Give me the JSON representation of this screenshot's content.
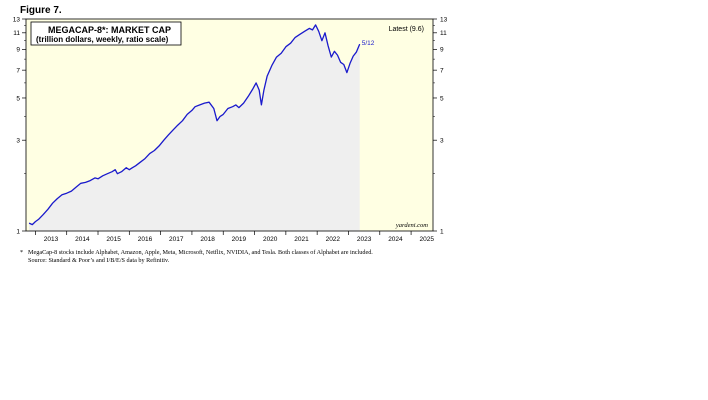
{
  "figure_label": "Figure 7.",
  "chart_data": {
    "type": "line",
    "title": "MEGACAP-8*: MARKET CAP",
    "subtitle": "(trillion dollars, weekly, ratio scale)",
    "latest_label": "Latest (9.6)",
    "end_label": "5/12",
    "source_label": "yardeni.com",
    "y_scale": "log",
    "ylim": [
      1,
      13
    ],
    "y_ticks": [
      1,
      3,
      5,
      7,
      9,
      11,
      13
    ],
    "y_tick_labels": [
      "1",
      "3",
      "5",
      "7",
      "9",
      "11",
      "13"
    ],
    "xlim": [
      2012.7,
      2025.7
    ],
    "x_ticks": [
      2013,
      2014,
      2015,
      2016,
      2017,
      2018,
      2019,
      2020,
      2021,
      2022,
      2023,
      2024,
      2025
    ],
    "x_tick_labels": [
      "2013",
      "2014",
      "2015",
      "2016",
      "2017",
      "2018",
      "2019",
      "2020",
      "2021",
      "2022",
      "2023",
      "2024",
      "2025"
    ],
    "grid": false,
    "colors": {
      "line": "#1a1acc",
      "chart_bg": "#ffffe3",
      "fill": "#efefef"
    },
    "series": [
      {
        "x": [
          2012.8,
          2012.9,
          2013.0,
          2013.1,
          2013.25,
          2013.4,
          2013.55,
          2013.7,
          2013.85,
          2014.0,
          2014.15,
          2014.3,
          2014.45,
          2014.6,
          2014.75,
          2014.9,
          2015.0,
          2015.15,
          2015.3,
          2015.45,
          2015.55,
          2015.62,
          2015.75,
          2015.9,
          2016.0,
          2016.1,
          2016.2,
          2016.35,
          2016.5,
          2016.65,
          2016.8,
          2016.95,
          2017.1,
          2017.25,
          2017.4,
          2017.55,
          2017.7,
          2017.85,
          2018.0,
          2018.1,
          2018.25,
          2018.4,
          2018.55,
          2018.7,
          2018.8,
          2018.9,
          2019.0,
          2019.15,
          2019.3,
          2019.4,
          2019.5,
          2019.65,
          2019.8,
          2019.95,
          2020.05,
          2020.15,
          2020.22,
          2020.3,
          2020.4,
          2020.55,
          2020.7,
          2020.85,
          2021.0,
          2021.15,
          2021.3,
          2021.45,
          2021.6,
          2021.75,
          2021.85,
          2021.95,
          2022.05,
          2022.15,
          2022.25,
          2022.35,
          2022.45,
          2022.55,
          2022.65,
          2022.75,
          2022.85,
          2022.95,
          2023.05,
          2023.15,
          2023.25,
          2023.36
        ],
        "values": [
          1.1,
          1.08,
          1.12,
          1.15,
          1.22,
          1.3,
          1.4,
          1.48,
          1.55,
          1.58,
          1.62,
          1.7,
          1.78,
          1.8,
          1.84,
          1.9,
          1.88,
          1.95,
          2.0,
          2.05,
          2.1,
          2.0,
          2.05,
          2.15,
          2.1,
          2.15,
          2.2,
          2.3,
          2.4,
          2.55,
          2.65,
          2.8,
          3.0,
          3.2,
          3.4,
          3.6,
          3.8,
          4.1,
          4.3,
          4.5,
          4.6,
          4.7,
          4.75,
          4.4,
          3.8,
          4.0,
          4.1,
          4.4,
          4.5,
          4.6,
          4.45,
          4.7,
          5.1,
          5.6,
          6.0,
          5.5,
          4.6,
          5.5,
          6.5,
          7.4,
          8.2,
          8.6,
          9.3,
          9.7,
          10.4,
          10.8,
          11.2,
          11.6,
          11.4,
          12.1,
          11.2,
          10.0,
          11.0,
          9.4,
          8.2,
          8.8,
          8.4,
          7.7,
          7.5,
          6.8,
          7.6,
          8.3,
          8.7,
          9.6
        ]
      }
    ]
  },
  "footnote": {
    "star": "*",
    "line1": "MegaCap-8 stocks include Alphabet, Amazon, Apple, Meta, Microsoft, Netflix, NVIDIA, and Tesla. Both classes of Alphabet are included.",
    "line2": "Source: Standard & Poor’s and I/B/E/S data by Refinitiv."
  }
}
